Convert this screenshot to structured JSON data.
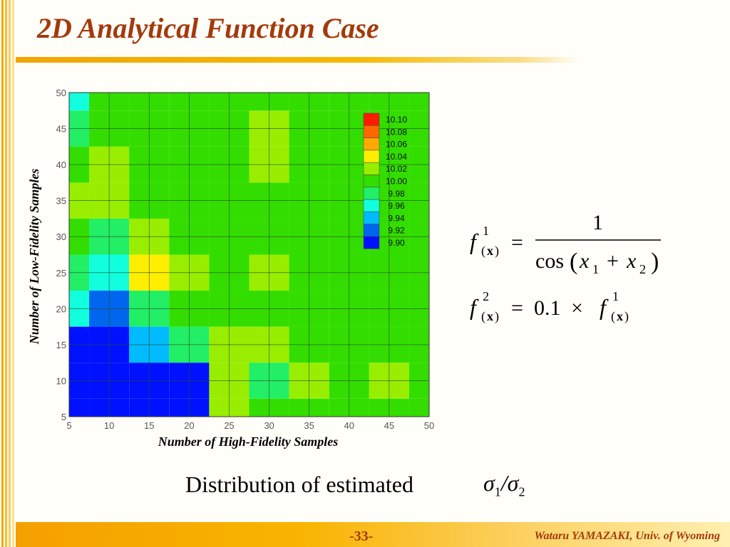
{
  "slide": {
    "title": "2D Analytical Function Case",
    "caption": "Distribution of estimated",
    "caption_math": {
      "sigma": "σ",
      "sub1": "1",
      "slash": "/",
      "sub2": "2"
    },
    "page_number": "-33-",
    "author": "Wataru YAMAZAKI, Univ. of Wyoming"
  },
  "colors": {
    "title": "#a33a0c",
    "accent": "#f5a000"
  },
  "formulas": {
    "f": "f",
    "x": "x",
    "sup1": "1",
    "sup2": "2",
    "one": "1",
    "cos": "cos",
    "plus": "+",
    "eq": "=",
    "coef": "0.1",
    "times": "×",
    "sub_1": "1",
    "sub_2": "2"
  },
  "chart_data": {
    "type": "heatmap",
    "xlabel": "Number of High-Fidelity Samples",
    "ylabel": "Number of Low-Fidelity Samples",
    "x": [
      5,
      10,
      15,
      20,
      25,
      30,
      35,
      40,
      45,
      50
    ],
    "y": [
      5,
      10,
      15,
      20,
      25,
      30,
      35,
      40,
      45,
      50
    ],
    "xlim": [
      5,
      50
    ],
    "ylim": [
      5,
      50
    ],
    "grid": true,
    "x_ticks": [
      "5",
      "10",
      "15",
      "20",
      "25",
      "30",
      "35",
      "40",
      "45",
      "50"
    ],
    "y_ticks": [
      "5",
      "10",
      "15",
      "20",
      "25",
      "30",
      "35",
      "40",
      "45",
      "50"
    ],
    "legend": {
      "placement": "top-right",
      "levels": [
        "10.10",
        "10.08",
        "10.06",
        "10.04",
        "10.02",
        "10.00",
        "9.98",
        "9.96",
        "9.94",
        "9.92",
        "9.90"
      ],
      "colors": [
        "#ff1a00",
        "#ff6600",
        "#ffaa00",
        "#ffee00",
        "#99ee00",
        "#33dd00",
        "#22ee66",
        "#11ffdd",
        "#00bbff",
        "#0066ee",
        "#0011ff"
      ]
    },
    "z": [
      [
        9.9,
        9.9,
        9.9,
        9.9,
        10.02,
        10.0,
        10.0,
        10.0,
        10.0,
        10.0
      ],
      [
        9.9,
        9.9,
        9.9,
        9.9,
        10.02,
        9.98,
        10.02,
        10.0,
        10.02,
        10.0
      ],
      [
        9.9,
        9.9,
        9.94,
        9.98,
        10.02,
        10.02,
        10.0,
        10.0,
        10.0,
        10.0
      ],
      [
        9.96,
        9.92,
        9.98,
        10.0,
        10.0,
        10.0,
        10.0,
        10.0,
        10.0,
        10.0
      ],
      [
        9.98,
        9.96,
        10.04,
        10.02,
        10.0,
        10.02,
        10.0,
        10.0,
        10.0,
        10.0
      ],
      [
        10.0,
        9.98,
        10.02,
        10.0,
        10.0,
        10.0,
        10.0,
        10.0,
        10.0,
        10.0
      ],
      [
        10.02,
        10.02,
        10.0,
        10.0,
        10.0,
        10.0,
        10.0,
        10.0,
        10.0,
        10.0
      ],
      [
        10.0,
        10.02,
        10.0,
        10.0,
        10.0,
        10.02,
        10.0,
        10.0,
        10.0,
        10.0
      ],
      [
        9.98,
        10.0,
        10.0,
        10.0,
        10.0,
        10.02,
        10.0,
        10.0,
        10.0,
        10.0
      ],
      [
        9.96,
        10.0,
        10.0,
        10.0,
        10.0,
        10.0,
        10.0,
        10.0,
        10.0,
        10.0
      ]
    ]
  }
}
